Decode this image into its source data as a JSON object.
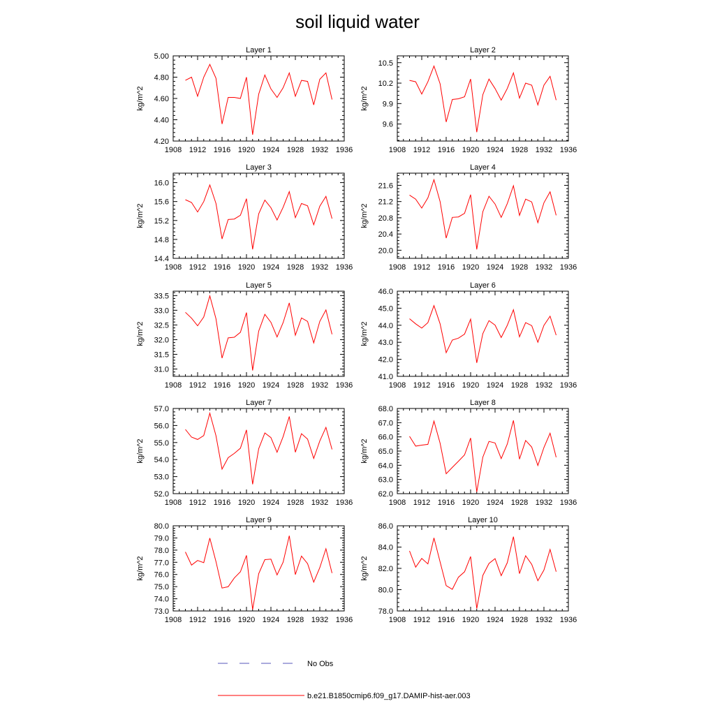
{
  "title": "soil liquid water",
  "colors": {
    "model": "#ff0000",
    "obs": "#5555bb",
    "axis": "#000000"
  },
  "legend": {
    "position": "bottom-center",
    "items": [
      {
        "label": "No Obs",
        "style": "dashed",
        "color": "#5555bb"
      },
      {
        "label": "b.e21.B1850cmip6.f09_g17.DAMIP-hist-aer.003",
        "style": "solid",
        "color": "#ff0000"
      }
    ]
  },
  "chart_data": [
    {
      "type": "line",
      "title": "Layer 1",
      "ylabel": "kg/m^2",
      "xlim": [
        1908,
        1936
      ],
      "xticks": [
        "1908",
        "1912",
        "1916",
        "1920",
        "1924",
        "1928",
        "1932",
        "1936"
      ],
      "ylim": [
        4.2,
        5.0
      ],
      "yticks": [
        "4.20",
        "4.40",
        "4.60",
        "4.80",
        "5.00"
      ],
      "x": [
        1910,
        1911,
        1912,
        1913,
        1914,
        1915,
        1916,
        1917,
        1918,
        1919,
        1920,
        1921,
        1922,
        1923,
        1924,
        1925,
        1926,
        1927,
        1928,
        1929,
        1930,
        1931,
        1932,
        1933,
        1934
      ],
      "series": [
        {
          "name": "b.e21.B1850cmip6.f09_g17.DAMIP-hist-aer.003",
          "values": [
            4.77,
            4.8,
            4.62,
            4.8,
            4.92,
            4.79,
            4.36,
            4.61,
            4.61,
            4.6,
            4.8,
            4.26,
            4.64,
            4.82,
            4.69,
            4.61,
            4.7,
            4.84,
            4.62,
            4.77,
            4.76,
            4.54,
            4.78,
            4.84,
            4.59
          ]
        }
      ]
    },
    {
      "type": "line",
      "title": "Layer 2",
      "ylabel": "kg/m^2",
      "xlim": [
        1908,
        1936
      ],
      "xticks": [
        "1908",
        "1912",
        "1916",
        "1920",
        "1924",
        "1928",
        "1932",
        "1936"
      ],
      "ylim": [
        9.35,
        10.6
      ],
      "yticks": [
        "9.6",
        "9.9",
        "10.2",
        "10.5"
      ],
      "x": [
        1910,
        1911,
        1912,
        1913,
        1914,
        1915,
        1916,
        1917,
        1918,
        1919,
        1920,
        1921,
        1922,
        1923,
        1924,
        1925,
        1926,
        1927,
        1928,
        1929,
        1930,
        1931,
        1932,
        1933,
        1934
      ],
      "series": [
        {
          "name": "b.e21.B1850cmip6.f09_g17.DAMIP-hist-aer.003",
          "values": [
            10.24,
            10.22,
            10.04,
            10.22,
            10.45,
            10.19,
            9.63,
            9.96,
            9.97,
            10.0,
            10.26,
            9.48,
            10.03,
            10.26,
            10.12,
            9.95,
            10.12,
            10.35,
            9.98,
            10.2,
            10.17,
            9.88,
            10.17,
            10.3,
            9.95
          ]
        }
      ]
    },
    {
      "type": "line",
      "title": "Layer 3",
      "ylabel": "kg/m^2",
      "xlim": [
        1908,
        1936
      ],
      "xticks": [
        "1908",
        "1912",
        "1916",
        "1920",
        "1924",
        "1928",
        "1932",
        "1936"
      ],
      "ylim": [
        14.4,
        16.2
      ],
      "yticks": [
        "14.4",
        "14.8",
        "15.2",
        "15.6",
        "16.0"
      ],
      "x": [
        1910,
        1911,
        1912,
        1913,
        1914,
        1915,
        1916,
        1917,
        1918,
        1919,
        1920,
        1921,
        1922,
        1923,
        1924,
        1925,
        1926,
        1927,
        1928,
        1929,
        1930,
        1931,
        1932,
        1933,
        1934
      ],
      "series": [
        {
          "name": "b.e21.B1850cmip6.f09_g17.DAMIP-hist-aer.003",
          "values": [
            15.64,
            15.58,
            15.38,
            15.6,
            15.95,
            15.56,
            14.81,
            15.22,
            15.23,
            15.31,
            15.66,
            14.59,
            15.34,
            15.63,
            15.47,
            15.21,
            15.48,
            15.81,
            15.26,
            15.56,
            15.51,
            15.11,
            15.5,
            15.71,
            15.24
          ]
        }
      ]
    },
    {
      "type": "line",
      "title": "Layer 4",
      "ylabel": "kg/m^2",
      "xlim": [
        1908,
        1936
      ],
      "xticks": [
        "1908",
        "1912",
        "1916",
        "1920",
        "1924",
        "1928",
        "1932",
        "1936"
      ],
      "ylim": [
        19.8,
        21.9
      ],
      "yticks": [
        "20.0",
        "20.4",
        "20.8",
        "21.2",
        "21.6"
      ],
      "x": [
        1910,
        1911,
        1912,
        1913,
        1914,
        1915,
        1916,
        1917,
        1918,
        1919,
        1920,
        1921,
        1922,
        1923,
        1924,
        1925,
        1926,
        1927,
        1928,
        1929,
        1930,
        1931,
        1932,
        1933,
        1934
      ],
      "series": [
        {
          "name": "b.e21.B1850cmip6.f09_g17.DAMIP-hist-aer.003",
          "values": [
            21.36,
            21.26,
            21.04,
            21.29,
            21.74,
            21.2,
            20.3,
            20.81,
            20.82,
            20.91,
            21.37,
            20.02,
            20.95,
            21.33,
            21.14,
            20.81,
            21.15,
            21.59,
            20.86,
            21.26,
            21.19,
            20.68,
            21.17,
            21.44,
            20.86
          ]
        }
      ]
    },
    {
      "type": "line",
      "title": "Layer 5",
      "ylabel": "kg/m^2",
      "xlim": [
        1908,
        1936
      ],
      "xticks": [
        "1908",
        "1912",
        "1916",
        "1920",
        "1924",
        "1928",
        "1932",
        "1936"
      ],
      "ylim": [
        30.75,
        33.65
      ],
      "yticks": [
        "31.0",
        "31.5",
        "32.0",
        "32.5",
        "33.0",
        "33.5"
      ],
      "x": [
        1910,
        1911,
        1912,
        1913,
        1914,
        1915,
        1916,
        1917,
        1918,
        1919,
        1920,
        1921,
        1922,
        1923,
        1924,
        1925,
        1926,
        1927,
        1928,
        1929,
        1930,
        1931,
        1932,
        1933,
        1934
      ],
      "series": [
        {
          "name": "b.e21.B1850cmip6.f09_g17.DAMIP-hist-aer.003",
          "values": [
            32.93,
            32.73,
            32.47,
            32.77,
            33.49,
            32.71,
            31.37,
            32.06,
            32.08,
            32.25,
            32.92,
            30.95,
            32.29,
            32.86,
            32.59,
            32.09,
            32.58,
            33.25,
            32.15,
            32.74,
            32.62,
            31.89,
            32.62,
            33.01,
            32.18
          ]
        }
      ]
    },
    {
      "type": "line",
      "title": "Layer 6",
      "ylabel": "kg/m^2",
      "xlim": [
        1908,
        1936
      ],
      "xticks": [
        "1908",
        "1912",
        "1916",
        "1920",
        "1924",
        "1928",
        "1932",
        "1936"
      ],
      "ylim": [
        41.0,
        46.0
      ],
      "yticks": [
        "41.0",
        "42.0",
        "43.0",
        "44.0",
        "45.0",
        "46.0"
      ],
      "x": [
        1910,
        1911,
        1912,
        1913,
        1914,
        1915,
        1916,
        1917,
        1918,
        1919,
        1920,
        1921,
        1922,
        1923,
        1924,
        1925,
        1926,
        1927,
        1928,
        1929,
        1930,
        1931,
        1932,
        1933,
        1934
      ],
      "series": [
        {
          "name": "b.e21.B1850cmip6.f09_g17.DAMIP-hist-aer.003",
          "values": [
            44.38,
            44.08,
            43.83,
            44.15,
            45.15,
            44.08,
            42.39,
            43.13,
            43.24,
            43.48,
            44.36,
            41.79,
            43.51,
            44.27,
            44.01,
            43.28,
            43.99,
            44.91,
            43.32,
            44.15,
            43.98,
            43.0,
            43.99,
            44.53,
            43.42
          ]
        }
      ]
    },
    {
      "type": "line",
      "title": "Layer 7",
      "ylabel": "kg/m^2",
      "xlim": [
        1908,
        1936
      ],
      "xticks": [
        "1908",
        "1912",
        "1916",
        "1920",
        "1924",
        "1928",
        "1932",
        "1936"
      ],
      "ylim": [
        52.0,
        57.0
      ],
      "yticks": [
        "52.0",
        "53.0",
        "54.0",
        "55.0",
        "56.0",
        "57.0"
      ],
      "x": [
        1910,
        1911,
        1912,
        1913,
        1914,
        1915,
        1916,
        1917,
        1918,
        1919,
        1920,
        1921,
        1922,
        1923,
        1924,
        1925,
        1926,
        1927,
        1928,
        1929,
        1930,
        1931,
        1932,
        1933,
        1934
      ],
      "series": [
        {
          "name": "b.e21.B1850cmip6.f09_g17.DAMIP-hist-aer.003",
          "values": [
            55.77,
            55.32,
            55.18,
            55.41,
            56.72,
            55.4,
            53.44,
            54.11,
            54.36,
            54.67,
            55.74,
            52.55,
            54.64,
            55.56,
            55.29,
            54.43,
            55.35,
            56.53,
            54.43,
            55.52,
            55.2,
            54.07,
            55.09,
            55.89,
            54.6
          ]
        }
      ]
    },
    {
      "type": "line",
      "title": "Layer 8",
      "ylabel": "kg/m^2",
      "xlim": [
        1908,
        1936
      ],
      "xticks": [
        "1908",
        "1912",
        "1916",
        "1920",
        "1924",
        "1928",
        "1932",
        "1936"
      ],
      "ylim": [
        62.0,
        68.0
      ],
      "yticks": [
        "62.0",
        "63.0",
        "64.0",
        "65.0",
        "66.0",
        "67.0",
        "68.0"
      ],
      "x": [
        1910,
        1911,
        1912,
        1913,
        1914,
        1915,
        1916,
        1917,
        1918,
        1919,
        1920,
        1921,
        1922,
        1923,
        1924,
        1925,
        1926,
        1927,
        1928,
        1929,
        1930,
        1931,
        1932,
        1933,
        1934
      ],
      "series": [
        {
          "name": "b.e21.B1850cmip6.f09_g17.DAMIP-hist-aer.003",
          "values": [
            66.04,
            65.35,
            65.42,
            65.47,
            67.11,
            65.55,
            63.4,
            63.85,
            64.28,
            64.73,
            65.92,
            62.12,
            64.57,
            65.68,
            65.57,
            64.47,
            65.49,
            67.16,
            64.43,
            65.75,
            65.28,
            63.98,
            65.25,
            66.26,
            64.56
          ]
        }
      ]
    },
    {
      "type": "line",
      "title": "Layer 9",
      "ylabel": "kg/m^2",
      "xlim": [
        1908,
        1936
      ],
      "xticks": [
        "1908",
        "1912",
        "1916",
        "1920",
        "1924",
        "1928",
        "1932",
        "1936"
      ],
      "ylim": [
        73.0,
        80.0
      ],
      "yticks": [
        "73.0",
        "74.0",
        "75.0",
        "76.0",
        "77.0",
        "78.0",
        "79.0",
        "80.0"
      ],
      "x": [
        1910,
        1911,
        1912,
        1913,
        1914,
        1915,
        1916,
        1917,
        1918,
        1919,
        1920,
        1921,
        1922,
        1923,
        1924,
        1925,
        1926,
        1927,
        1928,
        1929,
        1930,
        1931,
        1932,
        1933,
        1934
      ],
      "series": [
        {
          "name": "b.e21.B1850cmip6.f09_g17.DAMIP-hist-aer.003",
          "values": [
            77.85,
            76.77,
            77.15,
            76.97,
            78.99,
            77.06,
            74.88,
            74.99,
            75.71,
            76.22,
            77.57,
            73.11,
            76.06,
            77.22,
            77.26,
            75.96,
            77.01,
            79.18,
            75.99,
            77.51,
            76.89,
            75.37,
            76.56,
            78.11,
            76.11
          ]
        }
      ]
    },
    {
      "type": "line",
      "title": "Layer 10",
      "ylabel": "kg/m^2",
      "xlim": [
        1908,
        1936
      ],
      "xticks": [
        "1908",
        "1912",
        "1916",
        "1920",
        "1924",
        "1928",
        "1932",
        "1936"
      ],
      "ylim": [
        78.0,
        86.0
      ],
      "yticks": [
        "78.0",
        "80.0",
        "82.0",
        "84.0",
        "86.0"
      ],
      "x": [
        1910,
        1911,
        1912,
        1913,
        1914,
        1915,
        1916,
        1917,
        1918,
        1919,
        1920,
        1921,
        1922,
        1923,
        1924,
        1925,
        1926,
        1927,
        1928,
        1929,
        1930,
        1931,
        1932,
        1933,
        1934
      ],
      "series": [
        {
          "name": "b.e21.B1850cmip6.f09_g17.DAMIP-hist-aer.003",
          "values": [
            83.64,
            82.11,
            82.93,
            82.42,
            84.86,
            82.61,
            80.38,
            80.03,
            81.17,
            81.68,
            83.11,
            78.22,
            81.34,
            82.46,
            82.91,
            81.32,
            82.53,
            84.98,
            81.51,
            83.18,
            82.38,
            80.84,
            81.84,
            83.78,
            81.69
          ]
        }
      ]
    }
  ]
}
